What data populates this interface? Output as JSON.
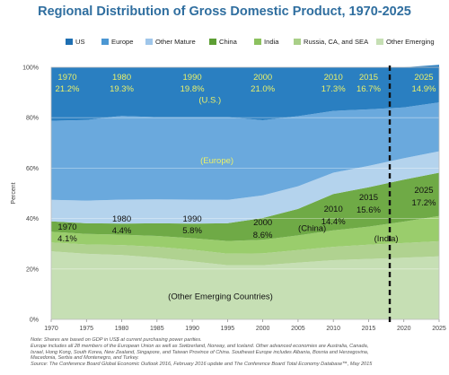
{
  "chart_data": {
    "type": "area",
    "stacked": true,
    "title": "Regional Distribution of Gross Domestic Product, 1970-2025",
    "ylabel": "Percent",
    "xlim": [
      1970,
      2025
    ],
    "ylim": [
      0,
      100
    ],
    "y_ticks": [
      "0%",
      "20%",
      "40%",
      "60%",
      "80%",
      "100%"
    ],
    "x_ticks": [
      "1970",
      "1975",
      "1980",
      "1985",
      "1990",
      "1995",
      "2000",
      "2005",
      "2010",
      "2015",
      "2020",
      "2025"
    ],
    "grid": true,
    "legend_position": "top",
    "projection_start": 2018,
    "x": [
      1970,
      1975,
      1980,
      1985,
      1990,
      1995,
      2000,
      2005,
      2010,
      2015,
      2020,
      2025
    ],
    "series": [
      {
        "name": "Other Emerging",
        "color": "#c6dfb4",
        "values": [
          27.0,
          26.0,
          25.5,
          24.5,
          23.0,
          21.5,
          21.5,
          22.5,
          23.5,
          24.0,
          24.5,
          25.0
        ]
      },
      {
        "name": "Russia, CA, and SEA",
        "color": "#b0d290",
        "values": [
          3.5,
          3.7,
          4.0,
          4.3,
          4.6,
          4.6,
          4.7,
          5.0,
          5.3,
          5.6,
          5.8,
          6.0
        ]
      },
      {
        "name": "India",
        "color": "#9acd6c",
        "values": [
          4.3,
          4.2,
          4.1,
          4.3,
          4.6,
          5.0,
          5.4,
          5.8,
          6.5,
          7.2,
          8.5,
          10.0
        ]
      },
      {
        "name": "China",
        "color": "#6faa46",
        "values": [
          4.1,
          4.2,
          4.4,
          5.0,
          5.8,
          7.0,
          8.6,
          10.5,
          14.4,
          15.6,
          16.6,
          17.2
        ]
      },
      {
        "name": "Other Mature",
        "color": "#b4d3ed",
        "values": [
          8.5,
          9.0,
          9.5,
          9.5,
          9.5,
          9.3,
          9.0,
          9.0,
          8.5,
          8.5,
          8.5,
          8.5
        ]
      },
      {
        "name": "Europe",
        "color": "#6aa9dd",
        "values": [
          31.4,
          32.0,
          33.2,
          32.6,
          32.7,
          32.8,
          29.8,
          27.8,
          24.5,
          22.4,
          20.2,
          19.4
        ]
      },
      {
        "name": "US",
        "color": "#2a7fc1",
        "values": [
          21.2,
          20.9,
          19.3,
          19.8,
          19.8,
          19.8,
          21.0,
          19.4,
          17.3,
          16.7,
          15.9,
          14.9
        ]
      }
    ],
    "legend": [
      {
        "name": "US",
        "color": "#1f6fb2"
      },
      {
        "name": "Europe",
        "color": "#4c97d3"
      },
      {
        "name": "Other Mature",
        "color": "#9fc6ea"
      },
      {
        "name": "China",
        "color": "#5d9e34"
      },
      {
        "name": "India",
        "color": "#8cc15f"
      },
      {
        "name": "Russia, CA, and SEA",
        "color": "#a9cf88"
      },
      {
        "name": "Other Emerging",
        "color": "#c6dfb4"
      }
    ],
    "year_labels_top": [
      {
        "year": "1970",
        "value": "21.2%",
        "x": 1970
      },
      {
        "year": "1980",
        "value": "19.3%",
        "x": 1980
      },
      {
        "year": "1990",
        "value": "19.8%",
        "x": 1990
      },
      {
        "year": "2000",
        "value": "21.0%",
        "x": 2000
      },
      {
        "year": "2010",
        "value": "17.3%",
        "x": 2010
      },
      {
        "year": "2015",
        "value": "16.7%",
        "x": 2015
      },
      {
        "year": "2025",
        "value": "14.9%",
        "x": 2025
      }
    ],
    "year_labels_china": [
      {
        "year": "1970",
        "value": "4.1%",
        "x": 1970
      },
      {
        "year": "1980",
        "value": "4.4%",
        "x": 1980
      },
      {
        "year": "1990",
        "value": "5.8%",
        "x": 1990
      },
      {
        "year": "2000",
        "value": "8.6%",
        "x": 2000
      },
      {
        "year": "2010",
        "value": "14.4%",
        "x": 2010
      },
      {
        "year": "2015",
        "value": "15.6%",
        "x": 2015
      },
      {
        "year": "2025",
        "value": "17.2%",
        "x": 2025
      }
    ],
    "region_labels": [
      {
        "text": "(U.S.)",
        "x": 1992.5,
        "y": 86
      },
      {
        "text": "(Europe)",
        "x": 1993.5,
        "y": 62
      },
      {
        "text": "(China)",
        "x": 2007,
        "y": 35
      },
      {
        "text": "(India)",
        "x": 2017.5,
        "y": 31
      },
      {
        "text": "(Other Emerging Countries)",
        "x": 1994,
        "y": 8
      }
    ]
  },
  "notes": [
    "Note: Shares are based on GDP in US$ at current purchasing power parities.",
    "Europe includes all 28 members of the European Union as well as Switzerland, Norway, and Iceland. Other advanced economies are Australia, Canada,",
    "Israel, Hong Kong, South Korea, New Zealand, Singapore, and Taiwan Province of China. Southeast Europe includes Albania, Bosnia and Herzegovina,",
    "Macedonia, Serbia and Montenegro, and Turkey.",
    "Source: The Conference Board Global Economic Outlook 2016, February 2016 update and The Conference Board Total Economy Database™, May 2015"
  ]
}
